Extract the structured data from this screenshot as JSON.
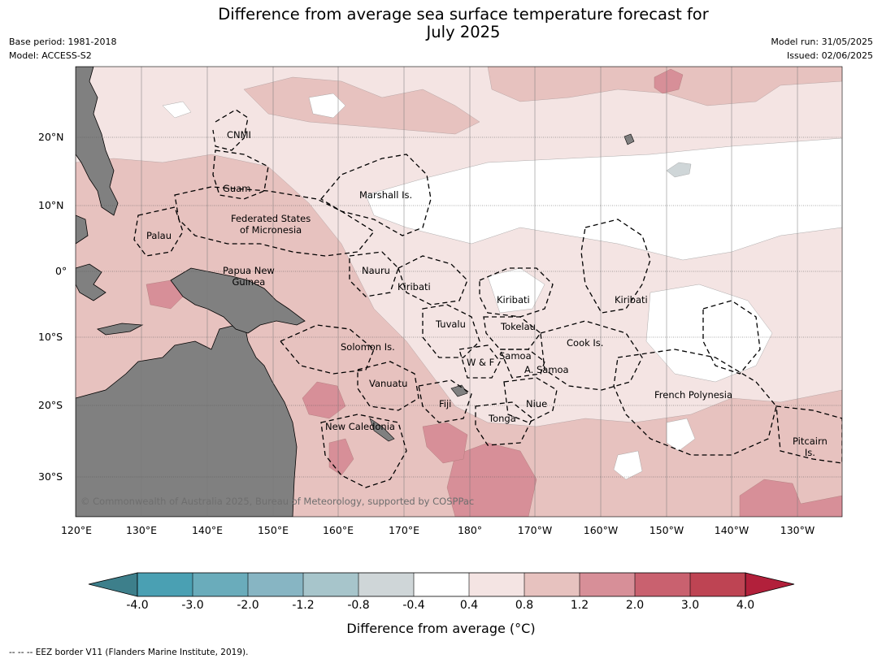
{
  "title": "Difference from average sea surface temperature forecast for July 2025",
  "title_line1": "Difference from average sea surface temperature forecast for",
  "title_line2": "July 2025",
  "meta": {
    "base_period": "Base period: 1981-2018",
    "model": "Model: ACCESS-S2",
    "model_run": "Model run: 31/05/2025",
    "issued": "Issued: 02/06/2025"
  },
  "lat_labels": [
    "20°N",
    "10°N",
    "0°",
    "10°S",
    "20°S",
    "30°S"
  ],
  "lon_labels": [
    "120°E",
    "130°E",
    "140°E",
    "150°E",
    "160°E",
    "170°E",
    "180°",
    "170°W",
    "160°W",
    "150°W",
    "140°W",
    "130°W"
  ],
  "eez_labels": {
    "cnmi": "CNMI",
    "guam": "Guam",
    "marshall": "Marshall Is.",
    "fsm_1": "Federated States",
    "fsm_2": "of Micronesia",
    "palau": "Palau",
    "png_1": "Papua New",
    "png_2": "Guinea",
    "nauru": "Nauru",
    "kiribati_w": "Kiribati",
    "kiribati_c": "Kiribati",
    "kiribati_e": "Kiribati",
    "tuvalu": "Tuvalu",
    "tokelau": "Tokelau",
    "solomon": "Solomon Is.",
    "samoa": "Samoa",
    "wf": "W & F",
    "asamoa": "A. Samoa",
    "cook": "Cook Is.",
    "vanuatu": "Vanuatu",
    "fiji": "Fiji",
    "niue": "Niue",
    "tonga": "Tonga",
    "newcal": "New Caledonia",
    "frpoly": "French Polynesia",
    "pitcairn_1": "Pitcairn",
    "pitcairn_2": "Is."
  },
  "copyright": "© Commonwealth of Australia 2025, Bureau of Meteorology, supported by COSPPac",
  "colorbar": {
    "ticks": [
      "-4.0",
      "-3.0",
      "-2.0",
      "-1.2",
      "-0.8",
      "-0.4",
      "0.4",
      "0.8",
      "1.2",
      "2.0",
      "3.0",
      "4.0"
    ],
    "colors": [
      "#3d7f8b",
      "#4aa0b3",
      "#6aacbb",
      "#87b5c3",
      "#a7c5cb",
      "#cfd6d8",
      "#ffffff",
      "#f4e4e3",
      "#e7c2bf",
      "#d78f98",
      "#c9616f",
      "#be4453",
      "#b2203b"
    ],
    "label": "Difference from average (°C)"
  },
  "footer": "--  --  -- EEZ border V11 (Flanders Marine Institute, 2019)."
}
